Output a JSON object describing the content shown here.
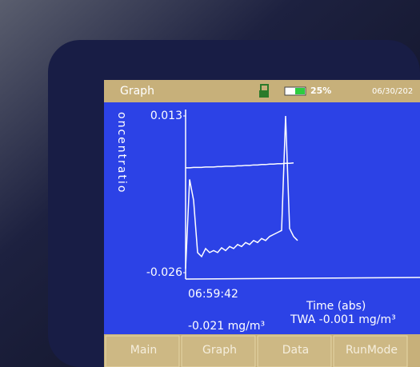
{
  "header": {
    "title": "Graph",
    "battery": "25%",
    "date": "06/30/202"
  },
  "chart_data": {
    "type": "line",
    "ylabel": "oncentratio",
    "xlabel": "Time (abs)",
    "categories": [
      "06:59:42",
      null,
      null,
      null,
      null,
      null,
      null,
      null,
      null,
      null,
      null,
      null,
      null,
      null,
      null,
      null,
      null,
      null,
      null,
      null,
      null,
      null,
      null,
      null,
      null,
      null,
      null,
      null,
      null
    ],
    "series": [
      {
        "color": "#ffffff",
        "values": [
          -0.025,
          -0.0028,
          -0.008,
          -0.021,
          -0.022,
          -0.02,
          -0.021,
          -0.0205,
          -0.021,
          -0.0198,
          -0.0205,
          -0.0195,
          -0.02,
          -0.019,
          -0.0195,
          -0.0185,
          -0.019,
          -0.018,
          -0.0185,
          -0.0175,
          -0.018,
          -0.017,
          -0.0165,
          -0.016,
          -0.0155,
          0.013,
          -0.015,
          -0.017,
          -0.018
        ]
      },
      {
        "color": "#ffffff",
        "values": [
          0.0001,
          0.0001,
          0.0002,
          0.0002,
          0.0002,
          0.0003,
          0.0003,
          0.0003,
          0.0004,
          0.0004,
          0.0005,
          0.0005,
          0.0005,
          0.0006,
          0.0006,
          0.0007,
          0.0007,
          0.0008,
          0.0008,
          0.0009,
          0.0009,
          0.001,
          0.001,
          0.0011,
          0.0011,
          0.0012,
          0.0012,
          0.0013,
          null
        ]
      }
    ],
    "ylim": [
      -0.026,
      0.013
    ],
    "yticks": [
      0.013,
      -0.026
    ]
  },
  "readout": {
    "value": "-0.021 mg/m³",
    "twa": "TWA -0.001 mg/m³"
  },
  "buttons": [
    "Main",
    "Graph",
    "Data",
    "RunMode"
  ]
}
